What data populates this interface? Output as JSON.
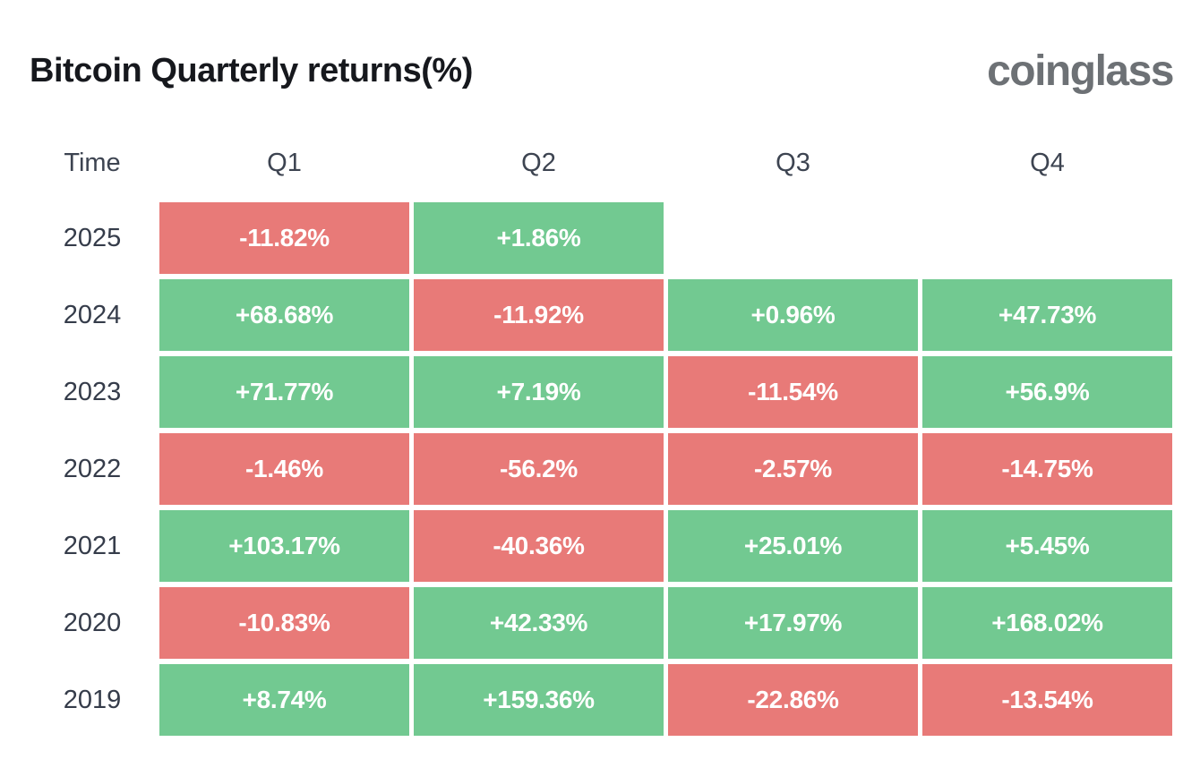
{
  "page": {
    "title": "Bitcoin Quarterly returns(%)",
    "logo_text": "coinglass"
  },
  "colors": {
    "positive": "#72c991",
    "negative": "#e87a78",
    "background": "#ffffff",
    "title_text": "#16181d",
    "logo_text": "#6d7175",
    "header_text": "#3d4451",
    "year_text": "#353c4a",
    "cell_text": "#ffffff"
  },
  "table": {
    "columns": [
      "Time",
      "Q1",
      "Q2",
      "Q3",
      "Q4"
    ],
    "rows": [
      {
        "year": "2025",
        "cells": [
          {
            "value": "-11.82%",
            "sign": "negative"
          },
          {
            "value": "+1.86%",
            "sign": "positive"
          },
          null,
          null
        ]
      },
      {
        "year": "2024",
        "cells": [
          {
            "value": "+68.68%",
            "sign": "positive"
          },
          {
            "value": "-11.92%",
            "sign": "negative"
          },
          {
            "value": "+0.96%",
            "sign": "positive"
          },
          {
            "value": "+47.73%",
            "sign": "positive"
          }
        ]
      },
      {
        "year": "2023",
        "cells": [
          {
            "value": "+71.77%",
            "sign": "positive"
          },
          {
            "value": "+7.19%",
            "sign": "positive"
          },
          {
            "value": "-11.54%",
            "sign": "negative"
          },
          {
            "value": "+56.9%",
            "sign": "positive"
          }
        ]
      },
      {
        "year": "2022",
        "cells": [
          {
            "value": "-1.46%",
            "sign": "negative"
          },
          {
            "value": "-56.2%",
            "sign": "negative"
          },
          {
            "value": "-2.57%",
            "sign": "negative"
          },
          {
            "value": "-14.75%",
            "sign": "negative"
          }
        ]
      },
      {
        "year": "2021",
        "cells": [
          {
            "value": "+103.17%",
            "sign": "positive"
          },
          {
            "value": "-40.36%",
            "sign": "negative"
          },
          {
            "value": "+25.01%",
            "sign": "positive"
          },
          {
            "value": "+5.45%",
            "sign": "positive"
          }
        ]
      },
      {
        "year": "2020",
        "cells": [
          {
            "value": "-10.83%",
            "sign": "negative"
          },
          {
            "value": "+42.33%",
            "sign": "positive"
          },
          {
            "value": "+17.97%",
            "sign": "positive"
          },
          {
            "value": "+168.02%",
            "sign": "positive"
          }
        ]
      },
      {
        "year": "2019",
        "cells": [
          {
            "value": "+8.74%",
            "sign": "positive"
          },
          {
            "value": "+159.36%",
            "sign": "positive"
          },
          {
            "value": "-22.86%",
            "sign": "negative"
          },
          {
            "value": "-13.54%",
            "sign": "negative"
          }
        ]
      }
    ]
  },
  "chart_data": {
    "type": "heatmap",
    "title": "Bitcoin Quarterly returns(%)",
    "watermark": "coinglass",
    "columns": [
      "Q1",
      "Q2",
      "Q3",
      "Q4"
    ],
    "rows": [
      "2025",
      "2024",
      "2023",
      "2022",
      "2021",
      "2020",
      "2019"
    ],
    "values_percent": [
      [
        -11.82,
        1.86,
        null,
        null
      ],
      [
        68.68,
        -11.92,
        0.96,
        47.73
      ],
      [
        71.77,
        7.19,
        -11.54,
        56.9
      ],
      [
        -1.46,
        -56.2,
        -2.57,
        -14.75
      ],
      [
        103.17,
        -40.36,
        25.01,
        5.45
      ],
      [
        -10.83,
        42.33,
        17.97,
        168.02
      ],
      [
        8.74,
        159.36,
        -22.86,
        -13.54
      ]
    ],
    "positive_color": "#72c991",
    "negative_color": "#e87a78",
    "legend": "none",
    "grid": "off"
  }
}
